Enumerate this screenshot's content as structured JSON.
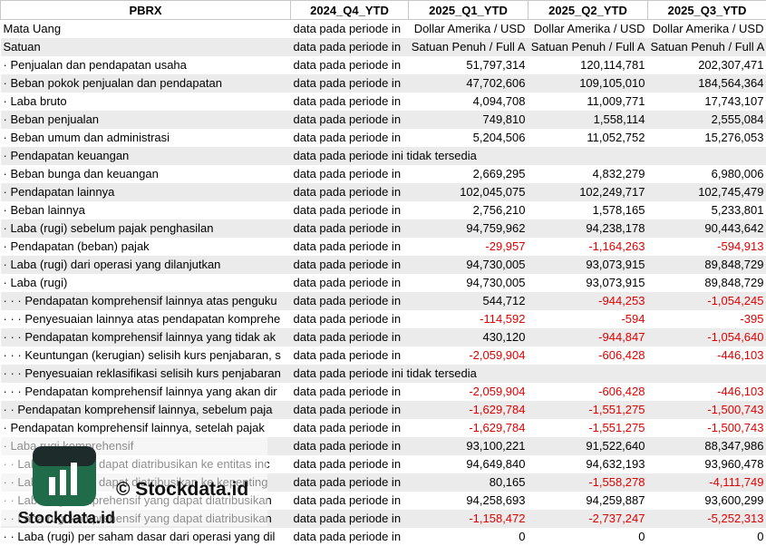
{
  "table": {
    "header": [
      "PBRX",
      "2024_Q4_YTD",
      "2025_Q1_YTD",
      "2025_Q2_YTD",
      "2025_Q3_YTD"
    ],
    "rows": [
      [
        "Mata Uang",
        "data pada periode in",
        "Dollar Amerika / USD",
        "Dollar Amerika / USD",
        "Dollar Amerika / USD"
      ],
      [
        "Satuan",
        "data pada periode in",
        "Satuan Penuh / Full A",
        "Satuan Penuh / Full A",
        "Satuan Penuh / Full A"
      ],
      [
        "· Penjualan dan pendapatan usaha",
        "data pada periode in",
        "51,797,314",
        "120,114,781",
        "202,307,471"
      ],
      [
        "· Beban pokok penjualan dan pendapatan",
        "data pada periode in",
        "47,702,606",
        "109,105,010",
        "184,564,364"
      ],
      [
        "· Laba bruto",
        "data pada periode in",
        "4,094,708",
        "11,009,771",
        "17,743,107"
      ],
      [
        "· Beban penjualan",
        "data pada periode in",
        "749,810",
        "1,558,114",
        "2,555,084"
      ],
      [
        "· Beban umum dan administrasi",
        "data pada periode in",
        "5,204,506",
        "11,052,752",
        "15,276,053"
      ],
      [
        "· Pendapatan keuangan",
        "data pada periode ini tidak tersedia"
      ],
      [
        "· Beban bunga dan keuangan",
        "data pada periode in",
        "2,669,295",
        "4,832,279",
        "6,980,006"
      ],
      [
        "· Pendapatan lainnya",
        "data pada periode in",
        "102,045,075",
        "102,249,717",
        "102,745,479"
      ],
      [
        "· Beban lainnya",
        "data pada periode in",
        "2,756,210",
        "1,578,165",
        "5,233,801"
      ],
      [
        "· Laba (rugi) sebelum pajak penghasilan",
        "data pada periode in",
        "94,759,962",
        "94,238,178",
        "90,443,642"
      ],
      [
        "· Pendapatan (beban) pajak",
        "data pada periode in",
        "-29,957",
        "-1,164,263",
        "-594,913"
      ],
      [
        "· Laba (rugi) dari operasi yang dilanjutkan",
        "data pada periode in",
        "94,730,005",
        "93,073,915",
        "89,848,729"
      ],
      [
        "· Laba (rugi)",
        "data pada periode in",
        "94,730,005",
        "93,073,915",
        "89,848,729"
      ],
      [
        "· · · Pendapatan komprehensif lainnya atas penguku",
        "data pada periode in",
        "544,712",
        "-944,253",
        "-1,054,245"
      ],
      [
        "· · · Penyesuaian lainnya atas pendapatan komprehe",
        "data pada periode in",
        "-114,592",
        "-594",
        "-395"
      ],
      [
        "· · · Pendapatan komprehensif lainnya yang tidak ak",
        "data pada periode in",
        "430,120",
        "-944,847",
        "-1,054,640"
      ],
      [
        "· · · Keuntungan (kerugian) selisih kurs penjabaran, s",
        "data pada periode in",
        "-2,059,904",
        "-606,428",
        "-446,103"
      ],
      [
        "· · · Penyesuaian reklasifikasi selisih kurs penjabaran",
        "data pada periode ini tidak tersedia"
      ],
      [
        "· · · Pendapatan komprehensif lainnya yang akan dir",
        "data pada periode in",
        "-2,059,904",
        "-606,428",
        "-446,103"
      ],
      [
        "· · Pendapatan komprehensif lainnya, sebelum paja",
        "data pada periode in",
        "-1,629,784",
        "-1,551,275",
        "-1,500,743"
      ],
      [
        "· Pendapatan komprehensif lainnya, setelah pajak",
        "data pada periode in",
        "-1,629,784",
        "-1,551,275",
        "-1,500,743"
      ],
      [
        "· Laba rugi komprehensif",
        "data pada periode in",
        "93,100,221",
        "91,522,640",
        "88,347,986"
      ],
      [
        "· · Laba rugi yang dapat diatribusikan ke entitas inc",
        "data pada periode in",
        "94,649,840",
        "94,632,193",
        "93,960,478"
      ],
      [
        "· · Laba rugi yang dapat diatribusikan ke kepenting",
        "data pada periode in",
        "80,165",
        "-1,558,278",
        "-4,111,749"
      ],
      [
        "· · Laba rugi komprehensif yang dapat diatribusikan",
        "data pada periode in",
        "94,258,693",
        "94,259,887",
        "93,600,299"
      ],
      [
        "· · Laba rugi komprehensif yang dapat diatribusikan",
        "data pada periode in",
        "-1,158,472",
        "-2,737,247",
        "-5,252,313"
      ],
      [
        "· · Laba (rugi) per saham dasar dari operasi yang dil",
        "data pada periode in",
        "0",
        "0",
        "0"
      ]
    ]
  },
  "watermark": {
    "copyright": "© Stockdata.id",
    "brand": "Stockdata.id"
  }
}
